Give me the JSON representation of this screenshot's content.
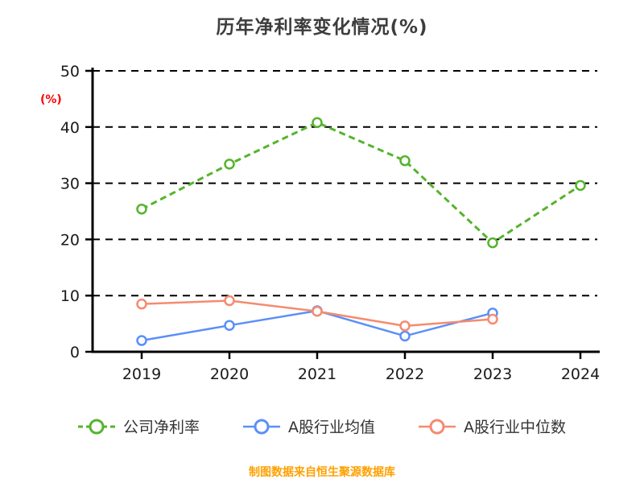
{
  "chart_data": {
    "type": "line",
    "title": "历年净利率变化情况(%)",
    "ylabel": "(%)",
    "ylabel_color": "#FF0000",
    "categories": [
      "2019",
      "2020",
      "2021",
      "2022",
      "2023",
      "2024"
    ],
    "ylim": [
      0,
      50
    ],
    "yticks": [
      0,
      10,
      20,
      30,
      40,
      50
    ],
    "grid": "horizontal dashed black",
    "legend_position": "bottom",
    "series": [
      {
        "name": "公司净利率",
        "color": "#55B42C",
        "dash": "8 5",
        "width": 3,
        "values": [
          25.4,
          33.4,
          40.8,
          34.0,
          19.4,
          29.6
        ]
      },
      {
        "name": "A股行业均值",
        "color": "#5B8FF9",
        "dash": null,
        "width": 2.5,
        "values": [
          2.0,
          4.7,
          7.3,
          2.8,
          6.9,
          null
        ]
      },
      {
        "name": "A股行业中位数",
        "color": "#F58B6F",
        "dash": null,
        "width": 2.5,
        "values": [
          8.5,
          9.1,
          7.2,
          4.6,
          5.8,
          null
        ]
      }
    ]
  },
  "footer": {
    "source_text": "制图数据来自恒生聚源数据库",
    "color": "#FFA000"
  }
}
